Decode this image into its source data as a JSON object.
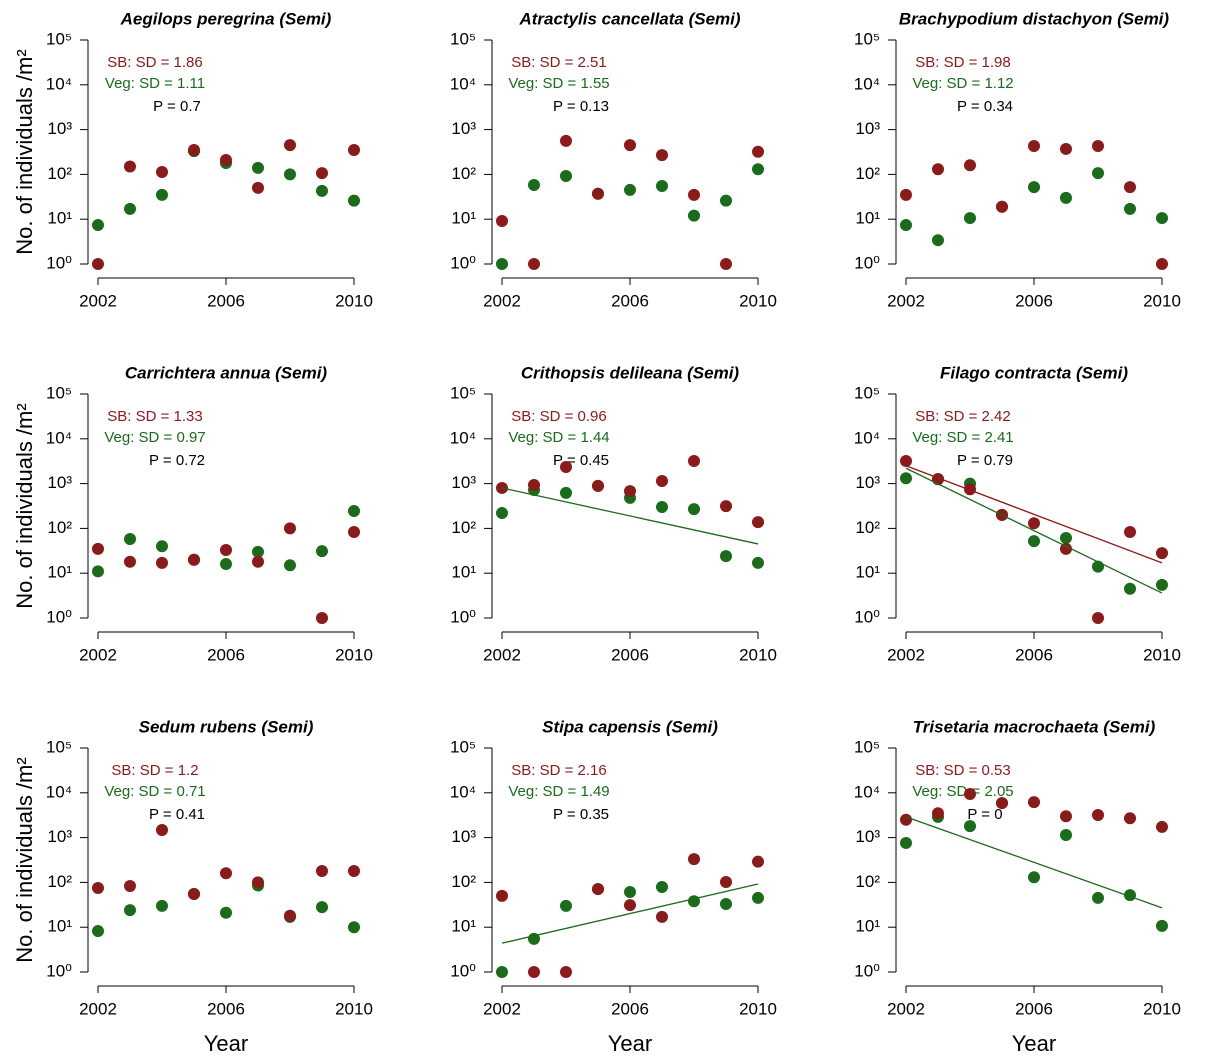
{
  "chart_data": [
    {
      "type": "scatter",
      "title": "Aegilops peregrina (Semi)",
      "ylabel": "No. of individuals /m²",
      "ylog": true,
      "x": [
        2002,
        2003,
        2004,
        2005,
        2006,
        2007,
        2008,
        2009,
        2010
      ],
      "series": [
        {
          "color": "#8b1a1a",
          "values": [
            1,
            150,
            113,
            350,
            210,
            50,
            450,
            107,
            350
          ]
        },
        {
          "color": "#1a6b1a",
          "values": [
            7.4,
            17,
            35,
            330,
            180,
            140,
            100,
            43,
            26
          ]
        }
      ],
      "annotations": [
        {
          "text": "SB: SD =  1.86",
          "color": "#8b1a1a"
        },
        {
          "text": "Veg: SD =  1.11",
          "color": "#1a6b1a"
        },
        {
          "text": "P =  0.7",
          "color": "#000000"
        }
      ],
      "xlim": [
        2002,
        2010
      ],
      "xticks": [
        2002,
        2006,
        2010
      ],
      "ylim": [
        1,
        100000
      ],
      "yticks": [
        {
          "value": 1,
          "label": "10⁰"
        },
        {
          "value": 10,
          "label": "10¹"
        },
        {
          "value": 100,
          "label": "10²"
        },
        {
          "value": 1000,
          "label": "10³"
        },
        {
          "value": 10000,
          "label": "10⁴"
        },
        {
          "value": 100000,
          "label": "10⁵"
        }
      ]
    },
    {
      "type": "scatter",
      "title": "Atractylis cancellata (Semi)",
      "ylog": true,
      "x": [
        2002,
        2003,
        2004,
        2005,
        2006,
        2007,
        2008,
        2009,
        2010
      ],
      "series": [
        {
          "color": "#8b1a1a",
          "values": [
            9.1,
            1,
            560,
            37,
            450,
            270,
            35,
            1,
            320
          ]
        },
        {
          "color": "#1a6b1a",
          "values": [
            1,
            58,
            92,
            37,
            45,
            55,
            12,
            26,
            130
          ]
        }
      ],
      "annotations": [
        {
          "text": "SB: SD =  2.51",
          "color": "#8b1a1a"
        },
        {
          "text": "Veg: SD =  1.55",
          "color": "#1a6b1a"
        },
        {
          "text": "P =  0.13",
          "color": "#000000"
        }
      ],
      "xlim": [
        2002,
        2010
      ],
      "xticks": [
        2002,
        2006,
        2010
      ],
      "ylim": [
        1,
        100000
      ],
      "yticks": [
        {
          "value": 1,
          "label": "10⁰"
        },
        {
          "value": 10,
          "label": "10¹"
        },
        {
          "value": 100,
          "label": "10²"
        },
        {
          "value": 1000,
          "label": "10³"
        },
        {
          "value": 10000,
          "label": "10⁴"
        },
        {
          "value": 100000,
          "label": "10⁵"
        }
      ]
    },
    {
      "type": "scatter",
      "title": "Brachypodium distachyon (Semi)",
      "ylog": true,
      "x": [
        2002,
        2003,
        2004,
        2005,
        2006,
        2007,
        2008,
        2009,
        2010
      ],
      "series": [
        {
          "color": "#8b1a1a",
          "values": [
            35,
            130,
            160,
            19,
            430,
            370,
            430,
            52,
            1
          ]
        },
        {
          "color": "#1a6b1a",
          "values": [
            7.4,
            3.4,
            10.6,
            19,
            52,
            30,
            107,
            17,
            10.6
          ]
        }
      ],
      "annotations": [
        {
          "text": "SB: SD =  1.98",
          "color": "#8b1a1a"
        },
        {
          "text": "Veg: SD =  1.12",
          "color": "#1a6b1a"
        },
        {
          "text": "P =  0.34",
          "color": "#000000"
        }
      ],
      "xlim": [
        2002,
        2010
      ],
      "xticks": [
        2002,
        2006,
        2010
      ],
      "ylim": [
        1,
        100000
      ],
      "yticks": [
        {
          "value": 1,
          "label": "10⁰"
        },
        {
          "value": 10,
          "label": "10¹"
        },
        {
          "value": 100,
          "label": "10²"
        },
        {
          "value": 1000,
          "label": "10³"
        },
        {
          "value": 10000,
          "label": "10⁴"
        },
        {
          "value": 100000,
          "label": "10⁵"
        }
      ]
    },
    {
      "type": "scatter",
      "title": "Carrichtera annua (Semi)",
      "ylabel": "No. of individuals /m²",
      "ylog": true,
      "x": [
        2002,
        2003,
        2004,
        2005,
        2006,
        2007,
        2008,
        2009,
        2010
      ],
      "series": [
        {
          "color": "#8b1a1a",
          "values": [
            35,
            18,
            17,
            20,
            33,
            18,
            100,
            1,
            83
          ]
        },
        {
          "color": "#1a6b1a",
          "values": [
            11,
            58,
            40,
            20,
            16,
            30,
            15,
            31,
            245
          ]
        }
      ],
      "annotations": [
        {
          "text": "SB: SD =  1.33",
          "color": "#8b1a1a"
        },
        {
          "text": "Veg: SD =  0.97",
          "color": "#1a6b1a"
        },
        {
          "text": "P =  0.72",
          "color": "#000000"
        }
      ],
      "xlim": [
        2002,
        2010
      ],
      "xticks": [
        2002,
        2006,
        2010
      ],
      "ylim": [
        1,
        100000
      ],
      "yticks": [
        {
          "value": 1,
          "label": "10⁰"
        },
        {
          "value": 10,
          "label": "10¹"
        },
        {
          "value": 100,
          "label": "10²"
        },
        {
          "value": 1000,
          "label": "10³"
        },
        {
          "value": 10000,
          "label": "10⁴"
        },
        {
          "value": 100000,
          "label": "10⁵"
        }
      ]
    },
    {
      "type": "scatter",
      "title": "Crithopsis delileana (Semi)",
      "ylog": true,
      "x": [
        2002,
        2003,
        2004,
        2005,
        2006,
        2007,
        2008,
        2009,
        2010
      ],
      "series": [
        {
          "color": "#8b1a1a",
          "values": [
            800,
            930,
            2350,
            890,
            680,
            1140,
            3200,
            315,
            138
          ]
        },
        {
          "color": "#1a6b1a",
          "values": [
            220,
            720,
            620,
            890,
            480,
            300,
            270,
            24,
            17
          ]
        }
      ],
      "fits": [
        {
          "color": "#1a6b1a",
          "x": [
            2002,
            2010
          ],
          "values": [
            800,
            45
          ]
        }
      ],
      "annotations": [
        {
          "text": "SB: SD =  0.96",
          "color": "#8b1a1a"
        },
        {
          "text": "Veg: SD =  1.44",
          "color": "#1a6b1a"
        },
        {
          "text": "P =  0.45",
          "color": "#000000"
        }
      ],
      "xlim": [
        2002,
        2010
      ],
      "xticks": [
        2002,
        2006,
        2010
      ],
      "ylim": [
        1,
        100000
      ],
      "yticks": [
        {
          "value": 1,
          "label": "10⁰"
        },
        {
          "value": 10,
          "label": "10¹"
        },
        {
          "value": 100,
          "label": "10²"
        },
        {
          "value": 1000,
          "label": "10³"
        },
        {
          "value": 10000,
          "label": "10⁴"
        },
        {
          "value": 100000,
          "label": "10⁵"
        }
      ]
    },
    {
      "type": "scatter",
      "title": "Filago contracta (Semi)",
      "ylog": true,
      "x": [
        2002,
        2003,
        2004,
        2005,
        2006,
        2007,
        2008,
        2009,
        2010
      ],
      "series": [
        {
          "color": "#8b1a1a",
          "values": [
            3200,
            1260,
            750,
            200,
            130,
            35,
            1,
            83,
            28
          ]
        },
        {
          "color": "#1a6b1a",
          "values": [
            1320,
            1260,
            1000,
            200,
            52,
            61,
            14,
            4.5,
            5.5
          ]
        }
      ],
      "fits": [
        {
          "color": "#8b1a1a",
          "x": [
            2002,
            2010
          ],
          "values": [
            2500,
            17
          ]
        },
        {
          "color": "#1a6b1a",
          "x": [
            2002,
            2010
          ],
          "values": [
            2200,
            3.6
          ]
        }
      ],
      "annotations": [
        {
          "text": "SB: SD =  2.42",
          "color": "#8b1a1a"
        },
        {
          "text": "Veg: SD =  2.41",
          "color": "#1a6b1a"
        },
        {
          "text": "P =  0.79",
          "color": "#000000"
        }
      ],
      "xlim": [
        2002,
        2010
      ],
      "xticks": [
        2002,
        2006,
        2010
      ],
      "ylim": [
        1,
        100000
      ],
      "yticks": [
        {
          "value": 1,
          "label": "10⁰"
        },
        {
          "value": 10,
          "label": "10¹"
        },
        {
          "value": 100,
          "label": "10²"
        },
        {
          "value": 1000,
          "label": "10³"
        },
        {
          "value": 10000,
          "label": "10⁴"
        },
        {
          "value": 100000,
          "label": "10⁵"
        }
      ]
    },
    {
      "type": "scatter",
      "title": "Sedum rubens (Semi)",
      "ylabel": "No. of individuals /m²",
      "xlabel": "Year",
      "ylog": true,
      "x": [
        2002,
        2003,
        2004,
        2005,
        2006,
        2007,
        2008,
        2009,
        2010
      ],
      "series": [
        {
          "color": "#8b1a1a",
          "values": [
            75,
            83,
            1480,
            55,
            160,
            100,
            18,
            180,
            180
          ]
        },
        {
          "color": "#1a6b1a",
          "values": [
            8.2,
            24,
            30,
            55,
            21,
            85,
            17,
            28,
            10
          ]
        }
      ],
      "annotations": [
        {
          "text": "SB: SD =  1.2",
          "color": "#8b1a1a"
        },
        {
          "text": "Veg: SD =  0.71",
          "color": "#1a6b1a"
        },
        {
          "text": "P =  0.41",
          "color": "#000000"
        }
      ],
      "xlim": [
        2002,
        2010
      ],
      "xticks": [
        2002,
        2006,
        2010
      ],
      "ylim": [
        1,
        100000
      ],
      "yticks": [
        {
          "value": 1,
          "label": "10⁰"
        },
        {
          "value": 10,
          "label": "10¹"
        },
        {
          "value": 100,
          "label": "10²"
        },
        {
          "value": 1000,
          "label": "10³"
        },
        {
          "value": 10000,
          "label": "10⁴"
        },
        {
          "value": 100000,
          "label": "10⁵"
        }
      ]
    },
    {
      "type": "scatter",
      "title": "Stipa capensis (Semi)",
      "xlabel": "Year",
      "ylog": true,
      "x": [
        2002,
        2003,
        2004,
        2005,
        2006,
        2007,
        2008,
        2009,
        2010
      ],
      "series": [
        {
          "color": "#8b1a1a",
          "values": [
            50,
            1,
            1,
            71,
            31,
            17,
            330,
            102,
            290
          ]
        },
        {
          "color": "#1a6b1a",
          "values": [
            1,
            5.5,
            30,
            71,
            61,
            79,
            38,
            33,
            45
          ]
        }
      ],
      "fits": [
        {
          "color": "#1a6b1a",
          "x": [
            2002,
            2010
          ],
          "values": [
            4.4,
            92
          ]
        }
      ],
      "annotations": [
        {
          "text": "SB: SD =  2.16",
          "color": "#8b1a1a"
        },
        {
          "text": "Veg: SD =  1.49",
          "color": "#1a6b1a"
        },
        {
          "text": "P =  0.35",
          "color": "#000000"
        }
      ],
      "xlim": [
        2002,
        2010
      ],
      "xticks": [
        2002,
        2006,
        2010
      ],
      "ylim": [
        1,
        100000
      ],
      "yticks": [
        {
          "value": 1,
          "label": "10⁰"
        },
        {
          "value": 10,
          "label": "10¹"
        },
        {
          "value": 100,
          "label": "10²"
        },
        {
          "value": 1000,
          "label": "10³"
        },
        {
          "value": 10000,
          "label": "10⁴"
        },
        {
          "value": 100000,
          "label": "10⁵"
        }
      ]
    },
    {
      "type": "scatter",
      "title": "Trisetaria macrochaeta (Semi)",
      "xlabel": "Year",
      "ylog": true,
      "x": [
        2002,
        2003,
        2004,
        2005,
        2006,
        2007,
        2008,
        2009,
        2010
      ],
      "series": [
        {
          "color": "#8b1a1a",
          "values": [
            2500,
            3500,
            9400,
            5900,
            6200,
            3000,
            3200,
            2700,
            1730
          ]
        },
        {
          "color": "#1a6b1a",
          "values": [
            760,
            2900,
            1800,
            5900,
            130,
            1140,
            45,
            52,
            10.7
          ]
        }
      ],
      "fits": [
        {
          "color": "#1a6b1a",
          "x": [
            2002,
            2010
          ],
          "values": [
            2900,
            27
          ]
        }
      ],
      "annotations": [
        {
          "text": "SB: SD =  0.53",
          "color": "#8b1a1a"
        },
        {
          "text": "Veg: SD =  2.05",
          "color": "#1a6b1a"
        },
        {
          "text": "P =  0",
          "color": "#000000"
        }
      ],
      "xlim": [
        2002,
        2010
      ],
      "xticks": [
        2002,
        2006,
        2010
      ],
      "ylim": [
        1,
        100000
      ],
      "yticks": [
        {
          "value": 1,
          "label": "10⁰"
        },
        {
          "value": 10,
          "label": "10¹"
        },
        {
          "value": 100,
          "label": "10²"
        },
        {
          "value": 1000,
          "label": "10³"
        },
        {
          "value": 10000,
          "label": "10⁴"
        },
        {
          "value": 100000,
          "label": "10⁵"
        }
      ]
    }
  ]
}
